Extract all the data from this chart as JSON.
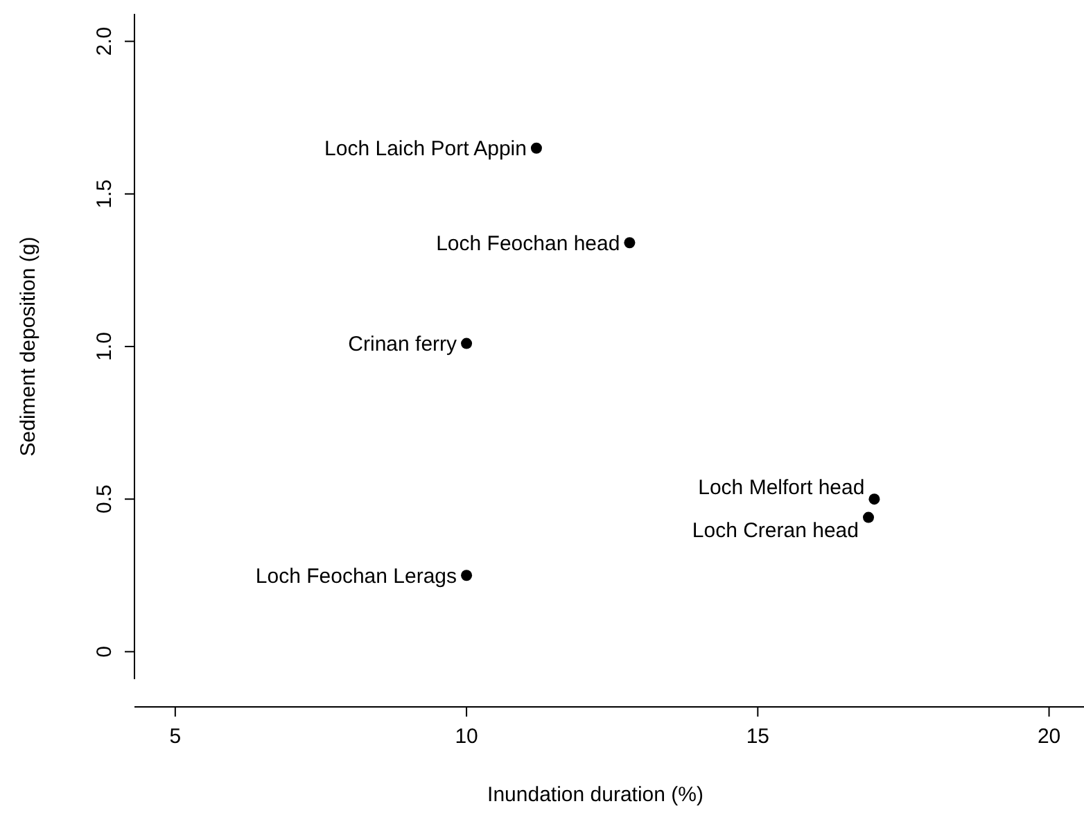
{
  "chart_data": {
    "type": "scatter",
    "xlabel": "Inundation duration (%)",
    "ylabel": "Sediment deposition (g)",
    "x": [
      11.2,
      12.8,
      10.0,
      10.0,
      17.0,
      16.9
    ],
    "values": [
      1.65,
      1.34,
      1.01,
      0.25,
      0.5,
      0.44
    ],
    "color": "#000000",
    "marker": "circle",
    "grid": false,
    "xlim": [
      4.3,
      20.6
    ],
    "ylim": [
      -0.09,
      2.09
    ],
    "xticks": [
      5,
      10,
      15,
      20
    ],
    "yticks": [
      0.0,
      {
        "value": 0.5,
        "label": "0.5"
      },
      {
        "value": 1.0,
        "label": "1.0"
      },
      {
        "value": 1.5,
        "label": "1.5"
      },
      {
        "value": 2.0,
        "label": "2.0"
      }
    ],
    "annotations": [
      {
        "text": "Loch Laich Port Appin",
        "x": 11.2,
        "y": 1.65
      },
      {
        "text": "Loch Feochan head",
        "x": 12.8,
        "y": 1.34
      },
      {
        "text": "Crinan ferry",
        "x": 10.0,
        "y": 1.01
      },
      {
        "text": "Loch Feochan Lerags",
        "x": 10.0,
        "y": 0.25
      },
      {
        "text": "Loch Melfort head",
        "x": 17.0,
        "y": 0.5
      },
      {
        "text": "Loch Creran head",
        "x": 16.9,
        "y": 0.44
      }
    ]
  }
}
